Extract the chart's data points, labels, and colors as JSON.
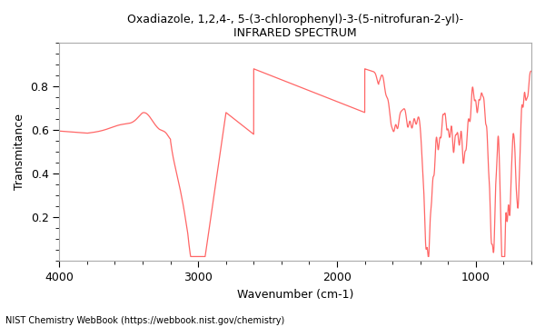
{
  "title_line1": "Oxadiazole, 1,2,4-, 5-(3-chlorophenyl)-3-(5-nitrofuran-2-yl)-",
  "title_line2": "INFRARED SPECTRUM",
  "xlabel": "Wavenumber (cm-1)",
  "ylabel": "Transmitance",
  "footer": "NIST Chemistry WebBook (https://webbook.nist.gov/chemistry)",
  "xmin": 4000,
  "xmax": 600,
  "ymin": 0.0,
  "ymax": 1.0,
  "line_color": "#ff6666",
  "background_color": "#ffffff",
  "plot_bg": "#ffffff",
  "xticks": [
    4000,
    3000,
    2000,
    1000
  ],
  "yticks": [
    0.2,
    0.4,
    0.6,
    0.8
  ]
}
